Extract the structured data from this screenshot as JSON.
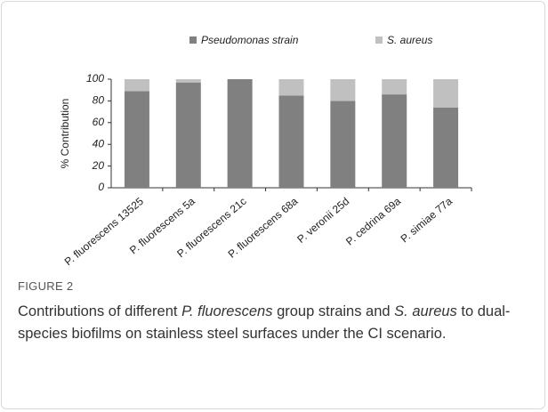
{
  "chart_data": {
    "type": "bar",
    "stacked": true,
    "categories": [
      "P. fluorescens 13525",
      "P. fluorescens 5a",
      "P. fluorescens 21c",
      "P. fluorescens 68a",
      "P. veronii 25d",
      "P. cedrina 69a",
      "P. simiae 77a"
    ],
    "series": [
      {
        "name": "Pseudomonas strain",
        "color": "#808080",
        "values": [
          89,
          97,
          100,
          85,
          80,
          86,
          74
        ]
      },
      {
        "name": "S. aureus",
        "color": "#c0c0c0",
        "values": [
          11,
          3,
          0,
          15,
          20,
          14,
          26
        ]
      }
    ],
    "ylabel": "% Contribution",
    "ylim": [
      0,
      100
    ],
    "yticks": [
      0,
      20,
      40,
      60,
      80,
      100
    ],
    "legend": "top"
  },
  "figure": {
    "label": "FIGURE 2",
    "caption": [
      {
        "text": "Contributions of different ",
        "italic": false
      },
      {
        "text": "P. fluorescens",
        "italic": true
      },
      {
        "text": " group strains and ",
        "italic": false
      },
      {
        "text": "S. aureus",
        "italic": true
      },
      {
        "text": " to dual-species biofilms on stainless steel surfaces under the CI scenario.",
        "italic": false
      }
    ]
  }
}
